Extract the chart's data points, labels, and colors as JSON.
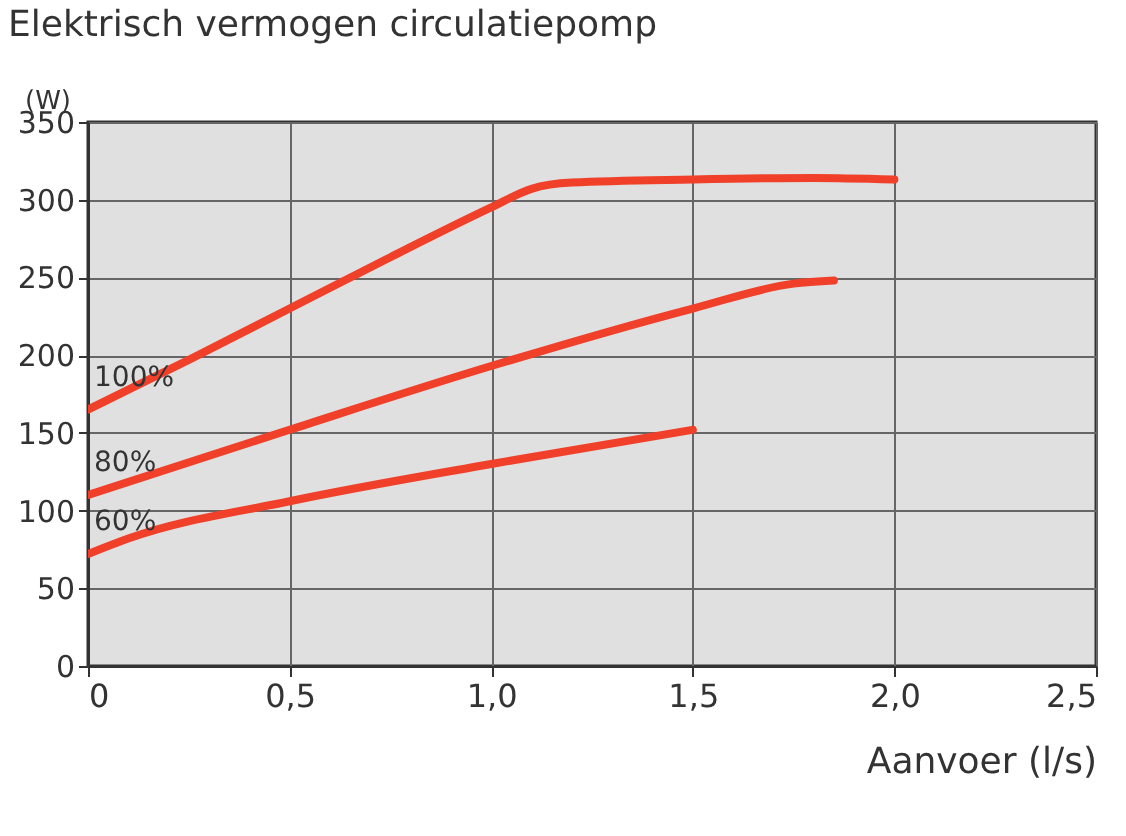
{
  "chart_data": {
    "type": "line",
    "title": "Elektrisch vermogen circulatiepomp",
    "xlabel": "Aanvoer (l/s)",
    "ylabel": "(W)",
    "xlim": [
      0,
      2.5
    ],
    "xticks": [
      {
        "value": 0,
        "label": "0"
      },
      {
        "value": 0.5,
        "label": "0,5"
      },
      {
        "value": 1,
        "label": "1,0"
      },
      {
        "value": 1.5,
        "label": "1,5"
      },
      {
        "value": 2,
        "label": "2,0"
      },
      {
        "value": 2.5,
        "label": "2,5"
      }
    ],
    "ylim": [
      0,
      350
    ],
    "yticks": [
      0,
      50,
      100,
      150,
      200,
      250,
      300,
      350
    ],
    "grid": true,
    "legend": false,
    "series": [
      {
        "name": "100%",
        "color": "#f0402a",
        "x": [
          0,
          0.25,
          0.5,
          0.75,
          1.0,
          1.1,
          1.2,
          1.5,
          1.8,
          2.0
        ],
        "values": [
          165,
          197,
          230,
          263,
          295,
          307,
          311,
          313,
          314,
          313
        ]
      },
      {
        "name": "80%",
        "color": "#f0402a",
        "x": [
          0,
          0.5,
          1.0,
          1.5,
          1.75,
          1.85
        ],
        "values": [
          110,
          152,
          193,
          230,
          246,
          248
        ]
      },
      {
        "name": "60%",
        "color": "#f0402a",
        "x": [
          0,
          0.1,
          0.5,
          1.0,
          1.5
        ],
        "values": [
          72,
          82,
          106,
          130,
          152
        ]
      }
    ]
  }
}
